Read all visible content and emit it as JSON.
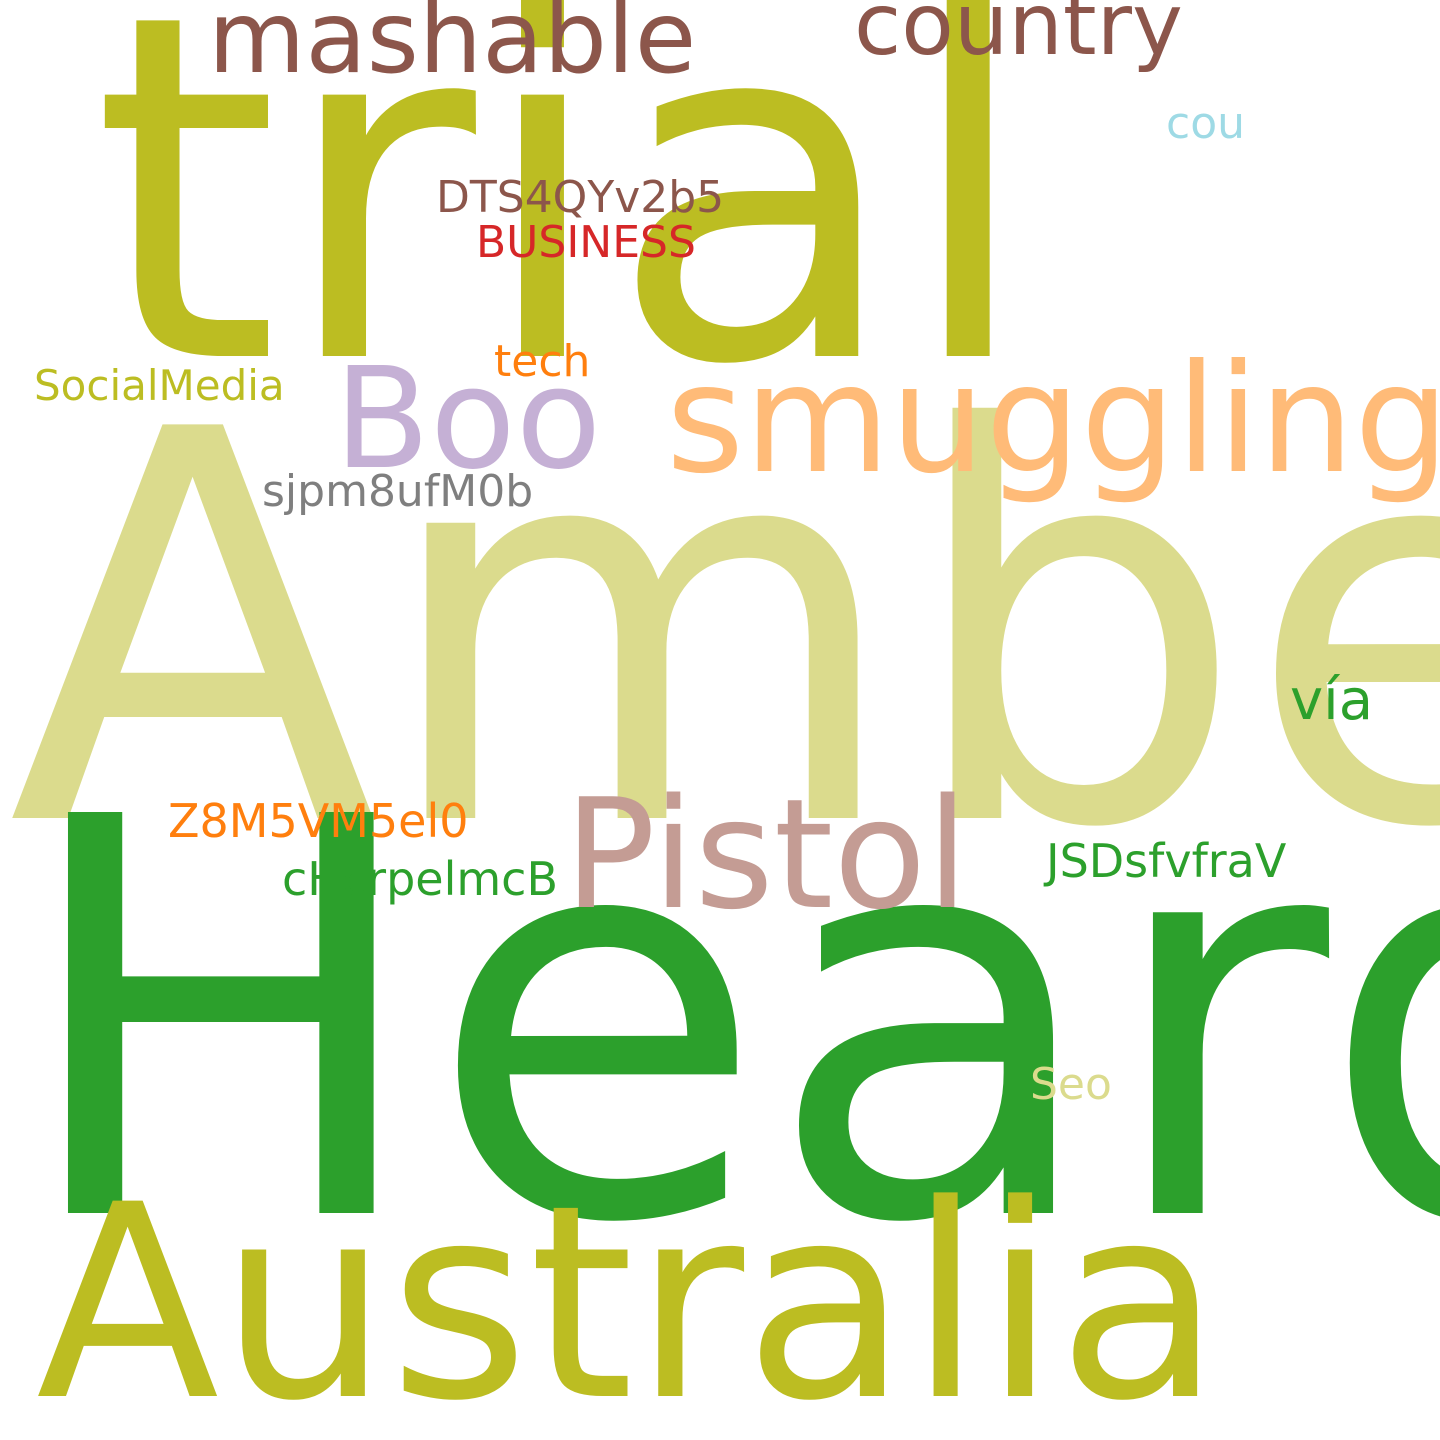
{
  "words": [
    {
      "id": "trial",
      "text": "trial",
      "color": "#bcbd22"
    },
    {
      "id": "amber",
      "text": "Amber",
      "color": "#dbdb8d"
    },
    {
      "id": "heard",
      "text": "Heard",
      "color": "#2ca02c"
    },
    {
      "id": "australia",
      "text": "Australia",
      "color": "#bcbd22"
    },
    {
      "id": "smuggling",
      "text": "smuggling",
      "color": "#ffbb78"
    },
    {
      "id": "pistol",
      "text": "Pistol",
      "color": "#c49c94"
    },
    {
      "id": "boo",
      "text": "Boo",
      "color": "#c5b0d5"
    },
    {
      "id": "mashable",
      "text": "mashable",
      "color": "#8c564b"
    },
    {
      "id": "country",
      "text": "country",
      "color": "#8c564b"
    },
    {
      "id": "via",
      "text": "vía",
      "color": "#2ca02c"
    },
    {
      "id": "dts4qyv2b5",
      "text": "DTS4QYv2b5",
      "color": "#8c564b"
    },
    {
      "id": "business",
      "text": "BUSINESS",
      "color": "#d62728"
    },
    {
      "id": "socialmedia",
      "text": "SocialMedia",
      "color": "#bcbd22"
    },
    {
      "id": "tech",
      "text": "tech",
      "color": "#ff7f0e"
    },
    {
      "id": "sjpm8ufm0b",
      "text": "sjpm8ufM0b",
      "color": "#7f7f7f"
    },
    {
      "id": "z8m5vm5el0",
      "text": "Z8M5VM5el0",
      "color": "#ff7f0e"
    },
    {
      "id": "chcrpelmcb",
      "text": "cHcrpelmcB",
      "color": "#2ca02c"
    },
    {
      "id": "jsdsfvfrav",
      "text": "JSDsfvfraV",
      "color": "#2ca02c"
    },
    {
      "id": "cou",
      "text": "cou",
      "color": "#9edae5"
    },
    {
      "id": "seo",
      "text": "Seo",
      "color": "#dbdb8d"
    }
  ]
}
